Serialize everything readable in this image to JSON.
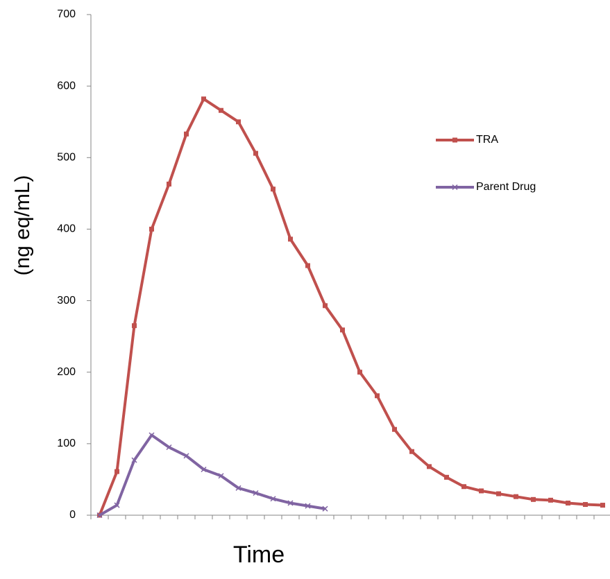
{
  "chart_data": {
    "type": "line",
    "x_label": "Time",
    "y_label": "(ng eq/mL)",
    "categories": [
      null,
      null,
      null,
      null,
      null,
      null,
      null,
      null,
      null,
      null,
      null,
      null,
      null,
      null,
      null,
      null,
      null,
      null,
      null,
      null,
      null,
      null,
      null,
      null,
      null,
      null,
      null,
      null,
      null,
      null
    ],
    "series": [
      {
        "name": "TRA",
        "color": "#c0504d",
        "marker": "square",
        "values": [
          0,
          61,
          265,
          400,
          463,
          533,
          582,
          566,
          550,
          506,
          456,
          386,
          349,
          293,
          259,
          200,
          167,
          120,
          89,
          68,
          53,
          40,
          34,
          30,
          26,
          22,
          21,
          17,
          15,
          14
        ]
      },
      {
        "name": "Parent Drug",
        "color": "#8064a2",
        "marker": "x",
        "values": [
          0,
          14,
          77,
          112,
          95,
          83,
          64,
          55,
          38,
          31,
          23,
          17,
          13,
          9,
          null,
          null,
          null,
          null,
          null,
          null,
          null,
          null,
          null,
          null,
          null,
          null,
          null,
          null,
          null,
          null
        ]
      }
    ],
    "ylim": [
      0,
      700
    ],
    "yticks": [
      0,
      100,
      200,
      300,
      400,
      500,
      600,
      700
    ],
    "legend": "right"
  }
}
